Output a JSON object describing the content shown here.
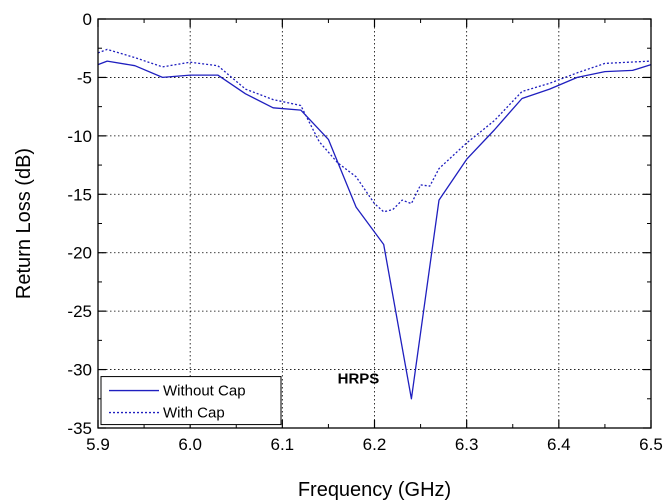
{
  "chart_data": {
    "type": "line",
    "xlabel": "Frequency (GHz)",
    "ylabel": "Return Loss (dB)",
    "xlim": [
      5.9,
      6.5
    ],
    "ylim": [
      -35,
      0
    ],
    "x_ticks": [
      5.9,
      6.0,
      6.1,
      6.2,
      6.3,
      6.4,
      6.5
    ],
    "x_tick_labels": [
      "5.9",
      "6.0",
      "6.1",
      "6.2",
      "6.3",
      "6.4",
      "6.5"
    ],
    "y_ticks": [
      0,
      -5,
      -10,
      -15,
      -20,
      -25,
      -30,
      -35
    ],
    "y_tick_labels": [
      "0",
      "-5",
      "-10",
      "-15",
      "-20",
      "-25",
      "-30",
      "-35"
    ],
    "grid": true,
    "legend_position": "bottom-left",
    "annotation": "HRPS",
    "series": [
      {
        "name": "Without Cap",
        "color": "#1f1fbf",
        "style": "solid",
        "x": [
          5.9,
          5.91,
          5.94,
          5.97,
          6.0,
          6.03,
          6.06,
          6.09,
          6.12,
          6.15,
          6.18,
          6.21,
          6.24,
          6.27,
          6.3,
          6.33,
          6.36,
          6.39,
          6.42,
          6.45,
          6.48,
          6.5
        ],
        "y": [
          -3.9,
          -3.6,
          -4.0,
          -5.0,
          -4.8,
          -4.8,
          -6.4,
          -7.6,
          -7.8,
          -10.3,
          -16.1,
          -19.3,
          -32.5,
          -15.5,
          -12.0,
          -9.5,
          -6.8,
          -6.0,
          -5.0,
          -4.5,
          -4.4,
          -3.9
        ]
      },
      {
        "name": "With Cap",
        "color": "#1f1fbf",
        "style": "dotted",
        "x": [
          5.9,
          5.91,
          5.94,
          5.97,
          6.0,
          6.02,
          6.03,
          6.06,
          6.09,
          6.12,
          6.14,
          6.16,
          6.18,
          6.2,
          6.21,
          6.22,
          6.23,
          6.24,
          6.25,
          6.26,
          6.27,
          6.3,
          6.33,
          6.36,
          6.39,
          6.42,
          6.45,
          6.5
        ],
        "y": [
          -2.9,
          -2.6,
          -3.3,
          -4.1,
          -3.7,
          -3.9,
          -4.0,
          -6.0,
          -6.9,
          -7.4,
          -10.5,
          -12.3,
          -13.5,
          -15.8,
          -16.5,
          -16.3,
          -15.5,
          -15.8,
          -14.2,
          -14.3,
          -12.8,
          -10.6,
          -8.7,
          -6.2,
          -5.5,
          -4.6,
          -3.8,
          -3.6
        ]
      }
    ]
  }
}
